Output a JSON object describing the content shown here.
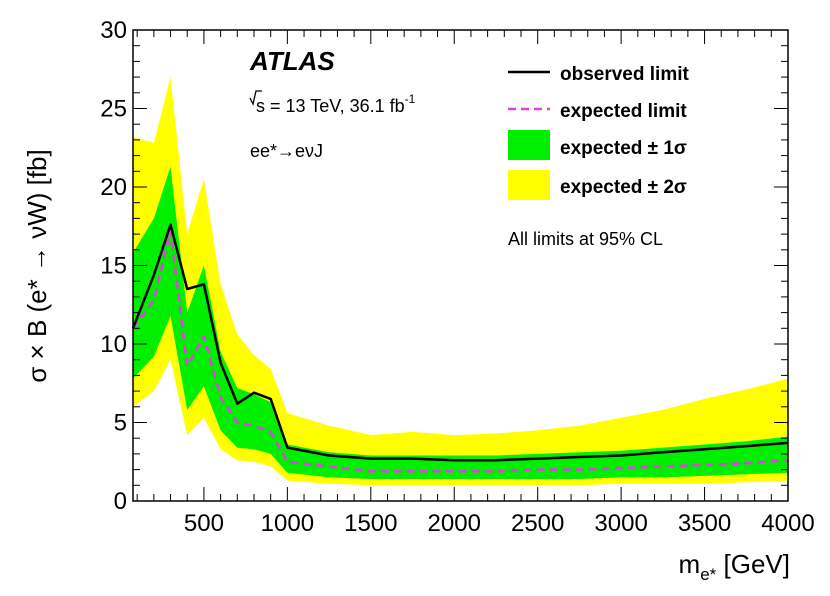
{
  "chart_data": {
    "type": "line",
    "title": "",
    "xlabel": "m_{e*} [GeV]",
    "ylabel": "σ × B (e* → νW) [fb]",
    "xlim": [
      75,
      4000
    ],
    "ylim": [
      0,
      30
    ],
    "x_ticks": [
      500,
      1000,
      1500,
      2000,
      2500,
      3000,
      3500,
      4000
    ],
    "y_ticks": [
      0,
      5,
      10,
      15,
      20,
      25,
      30
    ],
    "x_tick_labels": [
      "500",
      "1000",
      "1500",
      "2000",
      "2500",
      "3000",
      "3500",
      "4000"
    ],
    "y_tick_labels": [
      "0",
      "5",
      "10",
      "15",
      "20",
      "25",
      "30"
    ],
    "x": [
      75,
      200,
      300,
      400,
      500,
      600,
      700,
      800,
      900,
      1000,
      1250,
      1500,
      1750,
      2000,
      2250,
      2500,
      2750,
      3000,
      3250,
      3500,
      3750,
      4000
    ],
    "series": [
      {
        "name": "observed limit",
        "values": [
          11.0,
          14.4,
          17.6,
          13.5,
          13.8,
          8.8,
          6.2,
          6.9,
          6.5,
          3.4,
          2.9,
          2.7,
          2.7,
          2.6,
          2.6,
          2.7,
          2.8,
          2.9,
          3.1,
          3.3,
          3.5,
          3.7
        ]
      },
      {
        "name": "expected limit",
        "values": [
          11.0,
          12.8,
          17.2,
          8.6,
          10.5,
          6.6,
          5.0,
          4.8,
          4.4,
          2.5,
          2.2,
          1.9,
          1.9,
          1.9,
          1.9,
          2.0,
          2.0,
          2.1,
          2.2,
          2.3,
          2.4,
          2.6
        ]
      },
      {
        "name": "expected ± 1σ lower",
        "values": [
          7.8,
          9.2,
          11.8,
          5.8,
          7.3,
          4.5,
          3.4,
          3.3,
          3.0,
          1.8,
          1.5,
          1.4,
          1.4,
          1.4,
          1.4,
          1.4,
          1.4,
          1.5,
          1.5,
          1.6,
          1.7,
          1.8
        ]
      },
      {
        "name": "expected ± 1σ upper",
        "values": [
          15.8,
          18.0,
          21.3,
          12.0,
          15.0,
          9.5,
          7.2,
          6.8,
          6.3,
          3.6,
          3.1,
          2.9,
          2.9,
          2.9,
          2.9,
          3.0,
          3.1,
          3.2,
          3.4,
          3.6,
          3.8,
          4.1
        ]
      },
      {
        "name": "expected ± 2σ lower",
        "values": [
          6.0,
          7.0,
          9.0,
          4.2,
          5.3,
          3.3,
          2.6,
          2.5,
          2.2,
          1.3,
          1.1,
          1.0,
          1.0,
          1.0,
          1.0,
          1.0,
          1.0,
          1.1,
          1.1,
          1.1,
          1.2,
          1.3
        ]
      },
      {
        "name": "expected ± 2σ upper",
        "values": [
          23.2,
          22.8,
          27.0,
          17.0,
          20.5,
          13.8,
          10.6,
          9.3,
          8.4,
          5.6,
          4.8,
          4.2,
          4.4,
          4.2,
          4.3,
          4.5,
          4.8,
          5.3,
          5.8,
          6.5,
          7.1,
          7.8
        ]
      }
    ],
    "colors": {
      "observed": "#000000",
      "expected": "#e040e0",
      "band1": "#00ee00",
      "band2": "#ffff00"
    },
    "legend": [
      {
        "label": "observed limit",
        "style": "solid-line"
      },
      {
        "label": "expected limit",
        "style": "dashed-line"
      },
      {
        "label": "expected ± 1σ",
        "style": "green-box"
      },
      {
        "label": "expected ± 2σ",
        "style": "yellow-box"
      }
    ],
    "legend_position": "top-right",
    "annotations": {
      "experiment": "ATLAS",
      "energy_prefix": "s = 13 TeV, 36.1 fb",
      "energy_exponent": "-1",
      "channel": "ee*→eνJ",
      "cl_note": "All limits at 95% CL"
    }
  }
}
